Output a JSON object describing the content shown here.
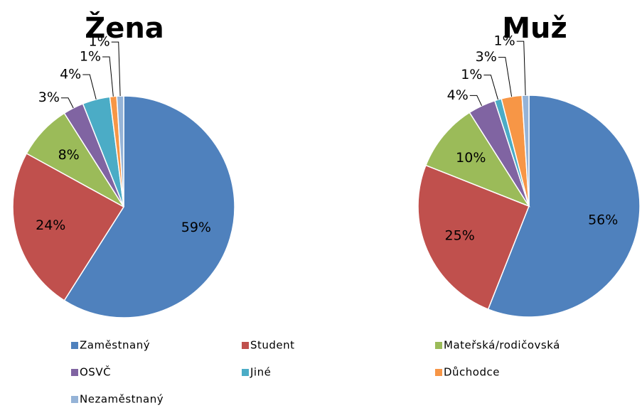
{
  "chart_data": [
    {
      "type": "pie",
      "title": "Žena",
      "categories": [
        "Zaměstnaný",
        "Student",
        "Mateřská/rodičovská",
        "OSVČ",
        "Jiné",
        "Důchodce",
        "Nezaměstnaný"
      ],
      "values": [
        59,
        24,
        8,
        3,
        4,
        1,
        1
      ],
      "value_labels": [
        "59%",
        "24%",
        "8%",
        "3%",
        "4%",
        "1%",
        "1%"
      ],
      "colors": [
        "#4f81bd",
        "#c0504d",
        "#9bbb59",
        "#8064a2",
        "#4bacc6",
        "#f79646",
        "#95b3d7"
      ]
    },
    {
      "type": "pie",
      "title": "Muž",
      "categories": [
        "Zaměstnaný",
        "Student",
        "Mateřská/rodičovská",
        "OSVČ",
        "Jiné",
        "Důchodce",
        "Nezaměstnaný"
      ],
      "values": [
        56,
        25,
        10,
        4,
        1,
        3,
        1
      ],
      "value_labels": [
        "56%",
        "25%",
        "10%",
        "4%",
        "1%",
        "3%",
        "1%"
      ],
      "colors": [
        "#4f81bd",
        "#c0504d",
        "#9bbb59",
        "#8064a2",
        "#4bacc6",
        "#f79646",
        "#95b3d7"
      ]
    }
  ]
}
